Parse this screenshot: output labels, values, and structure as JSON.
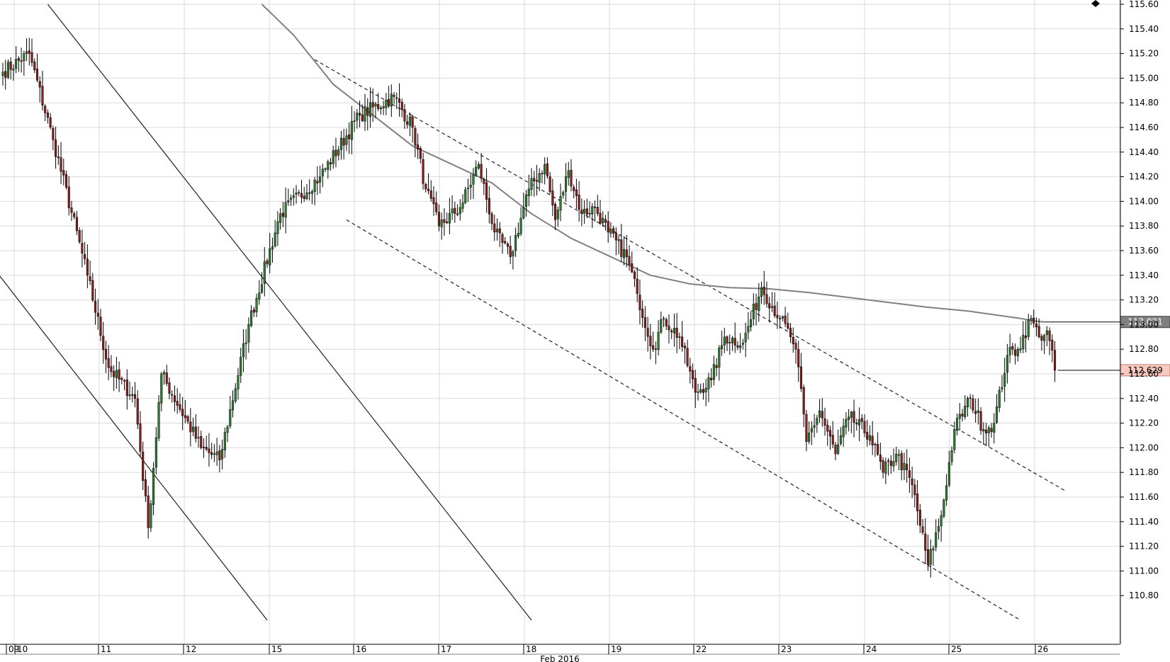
{
  "chart_data": {
    "type": "candlestick",
    "y_axis": {
      "min": 110.6,
      "max": 115.6,
      "ticks": [
        "115.60",
        "115.40",
        "115.20",
        "115.00",
        "114.80",
        "114.60",
        "114.40",
        "114.20",
        "114.00",
        "113.80",
        "113.60",
        "113.40",
        "113.20",
        "113.00",
        "112.80",
        "112.60",
        "112.40",
        "112.20",
        "112.00",
        "111.80",
        "111.60",
        "111.40",
        "111.20",
        "111.00",
        "110.80"
      ],
      "position": "right"
    },
    "x_axis": {
      "day_labels": [
        "09",
        "10",
        "11",
        "12",
        "15",
        "16",
        "17",
        "18",
        "19",
        "22",
        "23",
        "24",
        "25",
        "26"
      ],
      "month_label": "Feb 2016"
    },
    "grid": true,
    "price_tags": [
      {
        "id": "ma-level",
        "value": 113.021,
        "label": "113.021",
        "bg": "#808080",
        "fg": "#ffffff",
        "border": "#404040"
      },
      {
        "id": "last-price",
        "value": 112.629,
        "label": "112.629",
        "bg": "#f7c9bf",
        "fg": "#000000",
        "border": "#c08070"
      }
    ],
    "colors": {
      "bull": "#2f7d2f",
      "bear": "#8b1c1c",
      "wick": "#000000",
      "ma": "#808080",
      "trendline": "#202020",
      "grid": "#d9d9d9"
    },
    "swings": [
      [
        0,
        115.05
      ],
      [
        10,
        115.2
      ],
      [
        19,
        114.5
      ],
      [
        32,
        113.4
      ],
      [
        40,
        112.65
      ],
      [
        50,
        112.4
      ],
      [
        55,
        111.35
      ],
      [
        60,
        112.6
      ],
      [
        75,
        112.0
      ],
      [
        82,
        111.9
      ],
      [
        93,
        113.0
      ],
      [
        105,
        113.9
      ],
      [
        120,
        114.2
      ],
      [
        135,
        114.7
      ],
      [
        148,
        114.85
      ],
      [
        155,
        114.6
      ],
      [
        160,
        114.1
      ],
      [
        165,
        113.8
      ],
      [
        173,
        113.95
      ],
      [
        180,
        114.3
      ],
      [
        186,
        113.75
      ],
      [
        192,
        113.55
      ],
      [
        199,
        114.1
      ],
      [
        205,
        114.3
      ],
      [
        209,
        113.85
      ],
      [
        214,
        114.25
      ],
      [
        219,
        113.9
      ],
      [
        224,
        113.95
      ],
      [
        229,
        113.75
      ],
      [
        236,
        113.55
      ],
      [
        240,
        113.25
      ],
      [
        246,
        112.8
      ],
      [
        250,
        113.05
      ],
      [
        256,
        112.9
      ],
      [
        262,
        112.45
      ],
      [
        268,
        112.55
      ],
      [
        273,
        112.9
      ],
      [
        280,
        112.85
      ],
      [
        287,
        113.3
      ],
      [
        294,
        113.05
      ],
      [
        298,
        112.9
      ],
      [
        300,
        112.8
      ],
      [
        304,
        112.05
      ],
      [
        309,
        112.3
      ],
      [
        315,
        111.95
      ],
      [
        320,
        112.25
      ],
      [
        328,
        112.1
      ],
      [
        333,
        111.8
      ],
      [
        338,
        111.95
      ],
      [
        344,
        111.7
      ],
      [
        350,
        111.05
      ],
      [
        355,
        111.45
      ],
      [
        360,
        112.15
      ],
      [
        366,
        112.4
      ],
      [
        371,
        112.15
      ],
      [
        375,
        112.2
      ],
      [
        380,
        112.75
      ],
      [
        384,
        112.8
      ],
      [
        389,
        113.05
      ],
      [
        392,
        112.9
      ],
      [
        395,
        112.95
      ],
      [
        398,
        112.629
      ]
    ],
    "trendlines": [
      {
        "kind": "solid",
        "from": [
          -5,
          113.5
        ],
        "to": [
          100,
          110.6
        ]
      },
      {
        "kind": "solid",
        "from": [
          17,
          115.6
        ],
        "to": [
          200,
          110.6
        ]
      },
      {
        "kind": "dashed",
        "from": [
          118,
          115.15
        ],
        "to": [
          402,
          111.65
        ]
      },
      {
        "kind": "dashed",
        "from": [
          130,
          113.85
        ],
        "to": [
          385,
          110.6
        ]
      }
    ],
    "moving_average": [
      [
        98,
        115.6
      ],
      [
        110,
        115.35
      ],
      [
        125,
        114.95
      ],
      [
        140,
        114.7
      ],
      [
        155,
        114.45
      ],
      [
        170,
        114.3
      ],
      [
        185,
        114.15
      ],
      [
        200,
        113.9
      ],
      [
        215,
        113.7
      ],
      [
        230,
        113.55
      ],
      [
        245,
        113.4
      ],
      [
        260,
        113.33
      ],
      [
        275,
        113.3
      ],
      [
        290,
        113.29
      ],
      [
        305,
        113.26
      ],
      [
        320,
        113.22
      ],
      [
        335,
        113.18
      ],
      [
        350,
        113.14
      ],
      [
        365,
        113.11
      ],
      [
        375,
        113.08
      ],
      [
        385,
        113.05
      ],
      [
        390,
        113.03
      ],
      [
        394,
        113.021
      ]
    ]
  }
}
